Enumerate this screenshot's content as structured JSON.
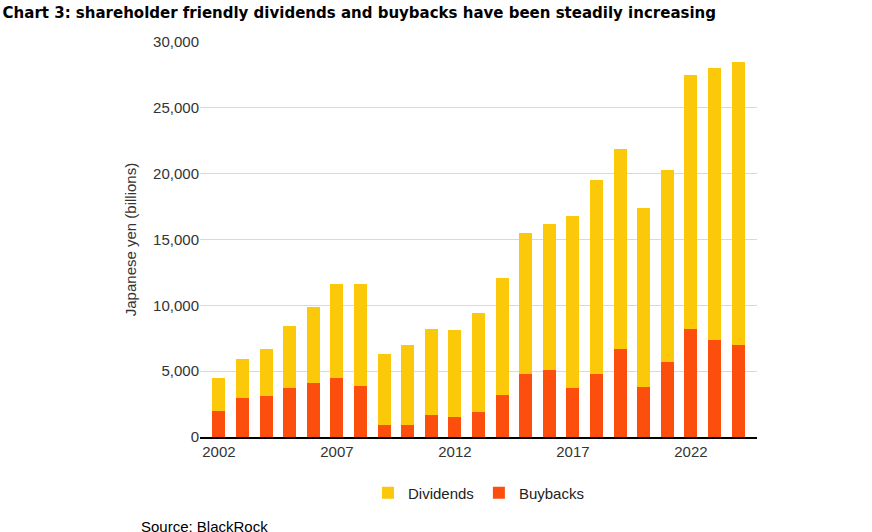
{
  "chart_data": {
    "type": "bar",
    "title": "Chart 3: shareholder friendly dividends and buybacks have been steadily increasing",
    "y_label": "Japanese yen (billions)",
    "source": "Source: BlackRock",
    "x": [
      2002,
      2003,
      2004,
      2005,
      2006,
      2007,
      2008,
      2009,
      2010,
      2011,
      2012,
      2013,
      2014,
      2015,
      2016,
      2017,
      2018,
      2019,
      2020,
      2021,
      2022,
      2023,
      2024
    ],
    "series": [
      {
        "name": "Buybacks",
        "color": "#fc4f0e",
        "values": [
          2000,
          3000,
          3100,
          3700,
          4100,
          4500,
          3900,
          900,
          900,
          1700,
          1500,
          1900,
          3200,
          4800,
          5100,
          3700,
          4800,
          6700,
          3800,
          5700,
          8200,
          7400,
          7000
        ]
      },
      {
        "name": "Dividends",
        "color": "#fcc80a",
        "values": [
          2500,
          2900,
          3600,
          4700,
          5800,
          7100,
          7700,
          5400,
          6100,
          6500,
          6600,
          7500,
          8900,
          10700,
          11100,
          13100,
          14700,
          15200,
          13600,
          14600,
          19300,
          20600,
          21500
        ]
      }
    ],
    "xlim": [
      2001.2,
      2024.8
    ],
    "xticks": [
      2002,
      2007,
      2012,
      2017,
      2022
    ],
    "ylim": [
      0,
      30000
    ],
    "yticks": [
      0,
      {
        "value": 5000,
        "label": "5,000"
      },
      {
        "value": 10000,
        "label": "10,000"
      },
      {
        "value": 15000,
        "label": "15,000"
      },
      {
        "value": 20000,
        "label": "20,000"
      },
      {
        "value": 25000,
        "label": "25,000"
      },
      {
        "value": 30000,
        "label": "30,000"
      }
    ],
    "stacked": true,
    "grid": true,
    "legend": "bottom"
  }
}
